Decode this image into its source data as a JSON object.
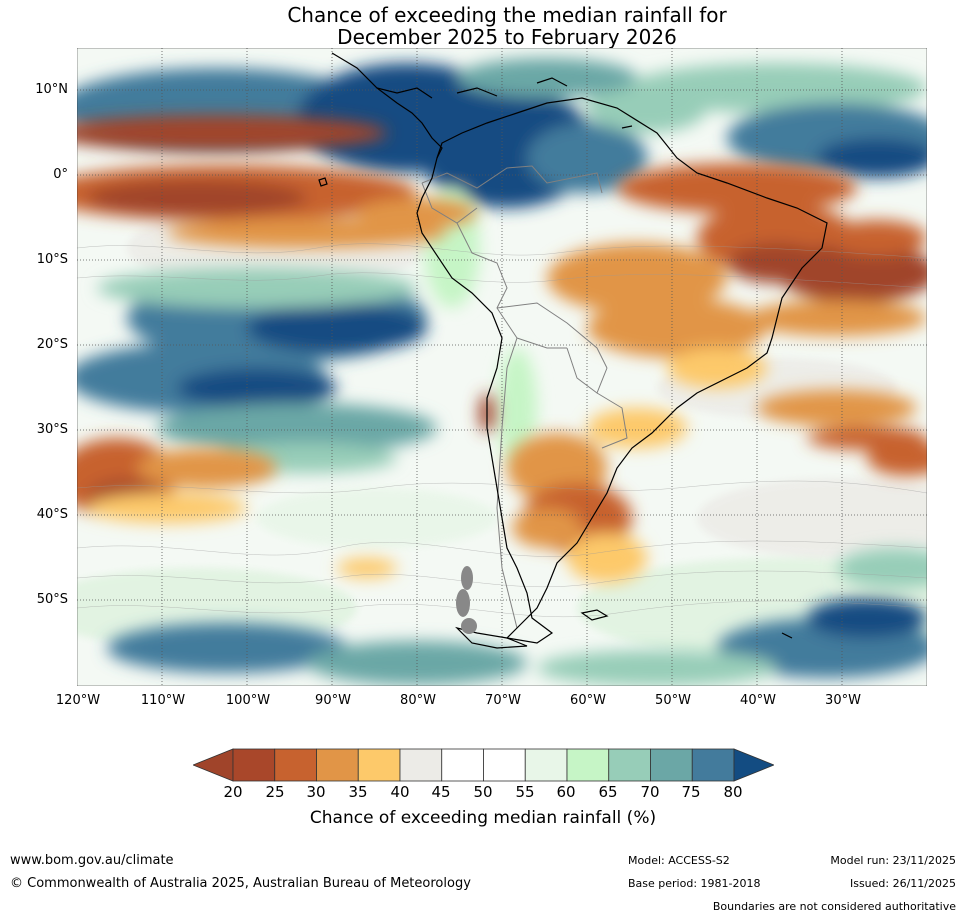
{
  "title": {
    "line1": "Chance of exceeding the median rainfall for",
    "line2": "December 2025 to February 2026"
  },
  "map": {
    "lat_labels": [
      "10°N",
      "0°",
      "10°S",
      "20°S",
      "30°S",
      "40°S",
      "50°S"
    ],
    "lon_labels": [
      "120°W",
      "110°W",
      "100°W",
      "90°W",
      "80°W",
      "70°W",
      "60°W",
      "50°W",
      "40°W",
      "30°W"
    ]
  },
  "colorbar": {
    "label": "Chance of exceeding median rainfall (%)",
    "ticks": [
      "20",
      "25",
      "30",
      "35",
      "40",
      "45",
      "50",
      "55",
      "60",
      "65",
      "70",
      "75",
      "80"
    ],
    "colors": [
      "#a0442a",
      "#a9472a",
      "#c7622f",
      "#e19547",
      "#fdc96a",
      "#ecebe7",
      "#ffffff",
      "#ffffff",
      "#e8f6e8",
      "#c6f5c6",
      "#97cdb8",
      "#6ba7a6",
      "#437b9c",
      "#134c82"
    ]
  },
  "footer": {
    "website": "www.bom.gov.au/climate",
    "copyright": "© Commonwealth of Australia 2025, Australian Bureau of Meteorology",
    "model": "Model: ACCESS-S2",
    "base_period": "Base period: 1981-2018",
    "model_run": "Model run: 23/11/2025",
    "issued": "Issued: 26/11/2025",
    "disclaimer": "Boundaries are not considered authoritative"
  }
}
